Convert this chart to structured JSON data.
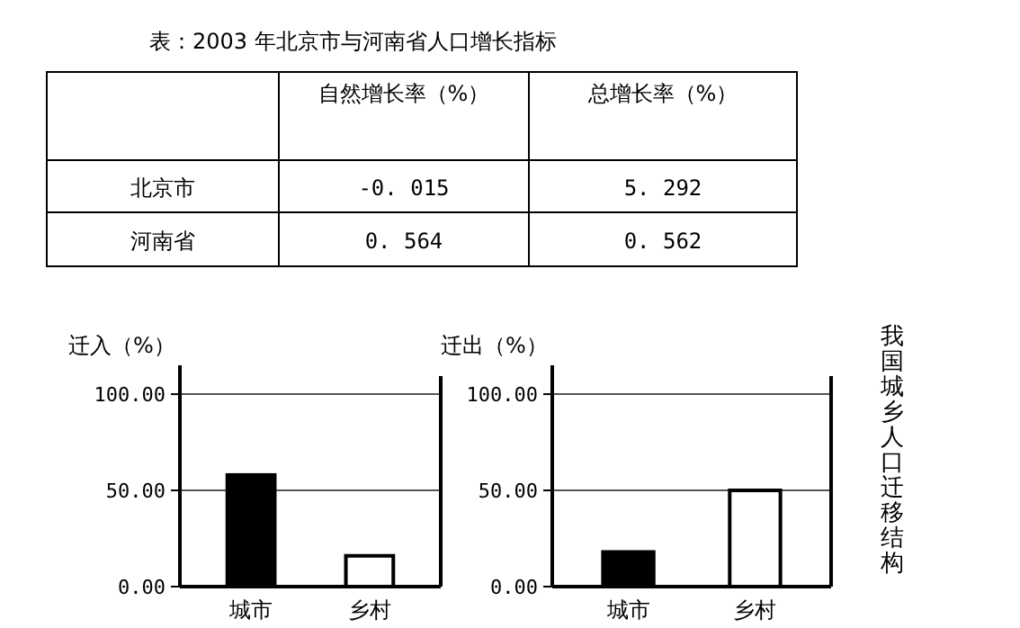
{
  "chart_data": [
    {
      "type": "other",
      "title": "表：2003 年北京市与河南省人口增长指标",
      "categories": [
        "自然增长率（%）",
        "总增长率（%）"
      ],
      "y_categories": [
        "北京市",
        "河南省"
      ],
      "cell_labels": [
        [
          "-0. 015",
          "5. 292"
        ],
        [
          "0. 564",
          "0. 562"
        ]
      ]
    },
    {
      "type": "bar",
      "ylabel": "迁入（%）",
      "categories": [
        "城市",
        "乡村"
      ],
      "values": [
        58,
        16
      ],
      "colors": [
        "#000000",
        "#ffffff"
      ],
      "ylim": [
        0,
        115
      ],
      "yticks": [
        {
          "value": 0,
          "label": "0.00"
        },
        {
          "value": 50,
          "label": "50.00"
        },
        {
          "value": 100,
          "label": "100.00"
        }
      ],
      "grid": "y"
    },
    {
      "type": "bar",
      "ylabel": "迁出（%）",
      "categories": [
        "城市",
        "乡村"
      ],
      "values": [
        18,
        50
      ],
      "colors": [
        "#000000",
        "#ffffff"
      ],
      "ylim": [
        0,
        115
      ],
      "yticks": [
        {
          "value": 0,
          "label": "0.00"
        },
        {
          "value": 50,
          "label": "50.00"
        },
        {
          "value": 100,
          "label": "100.00"
        }
      ],
      "grid": "y",
      "annotations": [
        "我国城乡人口迁移结构"
      ]
    }
  ]
}
